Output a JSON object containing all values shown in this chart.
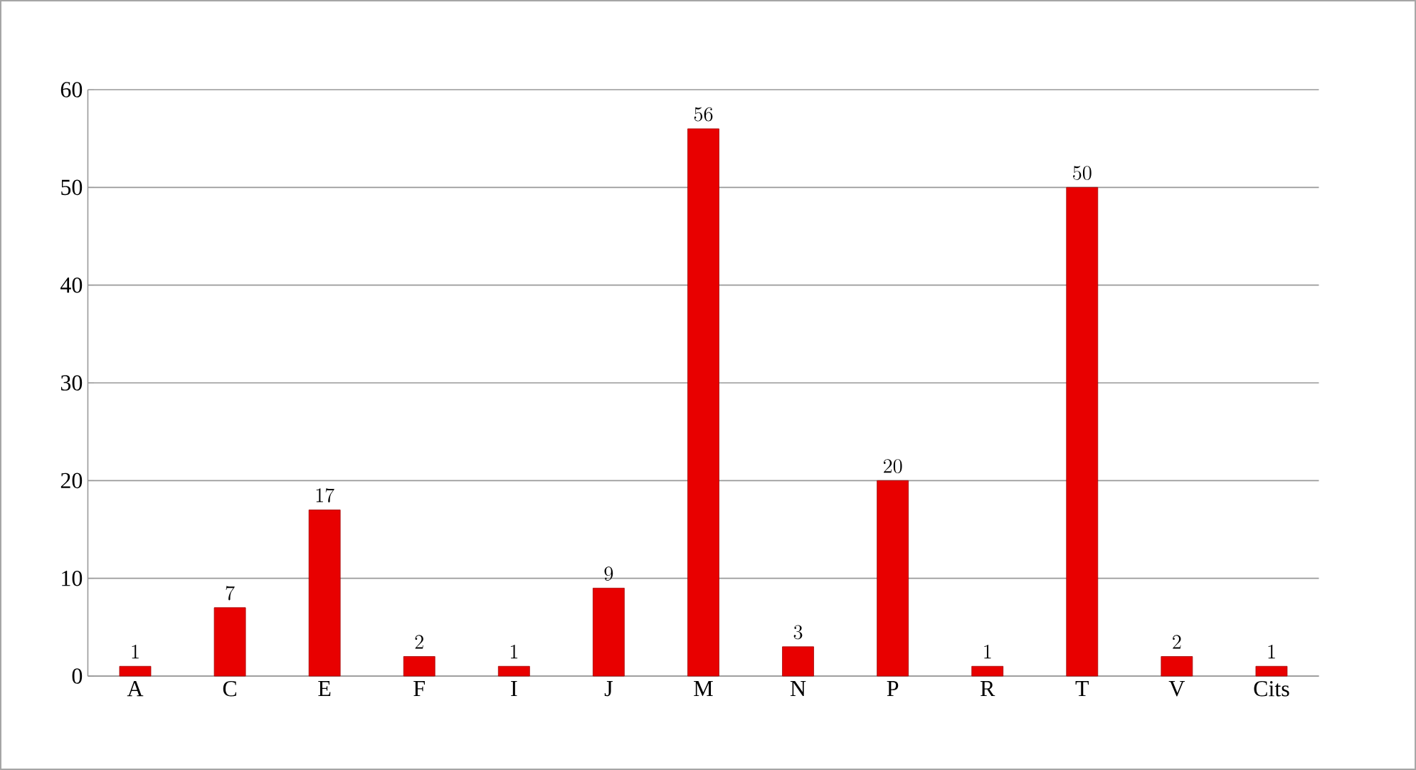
{
  "chart_data": {
    "type": "bar",
    "categories": [
      "A",
      "C",
      "E",
      "F",
      "I",
      "J",
      "M",
      "N",
      "P",
      "R",
      "T",
      "V",
      "Cits"
    ],
    "values": [
      1,
      7,
      17,
      2,
      1,
      9,
      56,
      3,
      20,
      1,
      50,
      2,
      1
    ],
    "color": "#e80000",
    "ylim": [
      0,
      60
    ],
    "yticks": [
      0,
      10,
      20,
      30,
      40,
      50,
      60
    ],
    "grid": "y",
    "data_labels": true
  }
}
